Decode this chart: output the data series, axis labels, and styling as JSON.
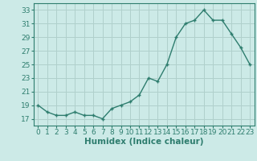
{
  "x": [
    0,
    1,
    2,
    3,
    4,
    5,
    6,
    7,
    8,
    9,
    10,
    11,
    12,
    13,
    14,
    15,
    16,
    17,
    18,
    19,
    20,
    21,
    22,
    23
  ],
  "y": [
    19,
    18,
    17.5,
    17.5,
    18,
    17.5,
    17.5,
    17,
    18.5,
    19,
    19.5,
    20.5,
    23,
    22.5,
    25,
    29,
    31,
    31.5,
    33,
    31.5,
    31.5,
    29.5,
    27.5,
    25
  ],
  "line_color": "#2e7d6e",
  "marker_color": "#2e7d6e",
  "bg_color": "#cceae7",
  "grid_color": "#b0d0cc",
  "xlabel": "Humidex (Indice chaleur)",
  "ylim": [
    16,
    34
  ],
  "xlim": [
    -0.5,
    23.5
  ],
  "yticks": [
    17,
    19,
    21,
    23,
    25,
    27,
    29,
    31,
    33
  ],
  "xticks": [
    0,
    1,
    2,
    3,
    4,
    5,
    6,
    7,
    8,
    9,
    10,
    11,
    12,
    13,
    14,
    15,
    16,
    17,
    18,
    19,
    20,
    21,
    22,
    23
  ],
  "xlabel_fontsize": 7.5,
  "tick_fontsize": 6.5
}
